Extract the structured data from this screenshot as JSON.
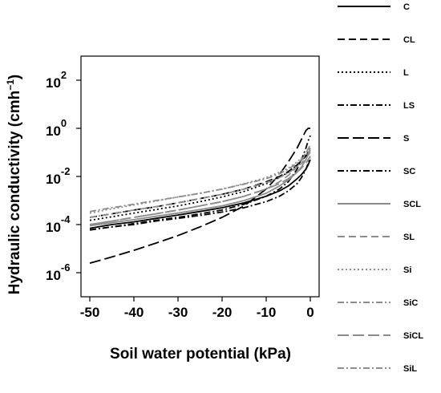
{
  "chart_data": {
    "type": "line",
    "title": "",
    "xlabel": "Soil water potential (kPa)",
    "ylabel": "Hydraulic conductivity (cmh",
    "ylabel_exp": "−1",
    "ylabel_close": ")",
    "y_scale": "log",
    "xlim": [
      -52,
      2
    ],
    "ylim": [
      1e-07,
      1000
    ],
    "x_ticks": [
      -50,
      -40,
      -30,
      -20,
      -10,
      0
    ],
    "x_tick_labels": [
      "-50",
      "-40",
      "-30",
      "-20",
      "-10",
      "0"
    ],
    "y_ticks": [
      {
        "value": 1e-06,
        "base": "10",
        "exp": "-6"
      },
      {
        "value": 0.0001,
        "base": "10",
        "exp": "-4"
      },
      {
        "value": 0.01,
        "base": "10",
        "exp": "-2"
      },
      {
        "value": 1,
        "base": "10",
        "exp": "0"
      },
      {
        "value": 100,
        "base": "10",
        "exp": "2"
      }
    ],
    "grid": false,
    "legend_position": "right",
    "x": [
      -50,
      -45,
      -40,
      -35,
      -30,
      -25,
      -20,
      -15,
      -10,
      -7,
      -5,
      -3,
      -2,
      -1,
      -0.5,
      0
    ],
    "series": [
      {
        "name": "C",
        "color": "#000000",
        "dash": "",
        "values": [
          7e-05,
          0.0001,
          0.00013,
          0.00018,
          0.00025,
          0.00035,
          0.0005,
          0.0008,
          0.0015,
          0.0025,
          0.004,
          0.008,
          0.012,
          0.02,
          0.03,
          0.05
        ]
      },
      {
        "name": "CL",
        "color": "#000000",
        "dash": "9,5",
        "values": [
          0.0002,
          0.00028,
          0.0004,
          0.00055,
          0.0008,
          0.0012,
          0.0018,
          0.003,
          0.006,
          0.01,
          0.016,
          0.03,
          0.045,
          0.07,
          0.09,
          0.12
        ]
      },
      {
        "name": "L",
        "color": "#000000",
        "dash": "2,3",
        "values": [
          0.00015,
          0.00021,
          0.0003,
          0.00042,
          0.0006,
          0.0009,
          0.0014,
          0.0024,
          0.005,
          0.009,
          0.015,
          0.03,
          0.045,
          0.08,
          0.11,
          0.15
        ]
      },
      {
        "name": "LS",
        "color": "#000000",
        "dash": "8,3,2,3",
        "values": [
          6e-05,
          8e-05,
          0.00011,
          0.00015,
          0.0002,
          0.00028,
          0.0004,
          0.0007,
          0.0015,
          0.003,
          0.006,
          0.02,
          0.05,
          0.15,
          0.3,
          0.5
        ]
      },
      {
        "name": "S",
        "color": "#000000",
        "dash": "14,5",
        "values": [
          2.5e-06,
          4.5e-06,
          8.5e-06,
          1.7e-05,
          3.5e-05,
          8e-05,
          0.0002,
          0.0006,
          0.003,
          0.012,
          0.04,
          0.15,
          0.35,
          0.8,
          1.0,
          1.0
        ]
      },
      {
        "name": "SC",
        "color": "#000000",
        "dash": "8,3,2,3",
        "values": [
          6e-05,
          8e-05,
          0.0001,
          0.00014,
          0.00018,
          0.00024,
          0.00033,
          0.0005,
          0.0009,
          0.0015,
          0.0025,
          0.005,
          0.009,
          0.02,
          0.035,
          0.06
        ]
      },
      {
        "name": "SCL",
        "color": "#8c8c8c",
        "dash": "",
        "values": [
          9e-05,
          0.00012,
          0.00016,
          0.00022,
          0.0003,
          0.00042,
          0.0006,
          0.001,
          0.002,
          0.004,
          0.007,
          0.015,
          0.025,
          0.05,
          0.08,
          0.12
        ]
      },
      {
        "name": "SL",
        "color": "#8c8c8c",
        "dash": "9,5",
        "values": [
          0.0001,
          0.00014,
          0.0002,
          0.00028,
          0.0004,
          0.0006,
          0.0009,
          0.0015,
          0.003,
          0.006,
          0.011,
          0.025,
          0.045,
          0.09,
          0.14,
          0.2
        ]
      },
      {
        "name": "Si",
        "color": "#8c8c8c",
        "dash": "2,3",
        "values": [
          0.0003,
          0.00045,
          0.00065,
          0.00095,
          0.0014,
          0.002,
          0.003,
          0.005,
          0.009,
          0.015,
          0.022,
          0.04,
          0.06,
          0.09,
          0.12,
          0.15
        ]
      },
      {
        "name": "SiC",
        "color": "#8c8c8c",
        "dash": "8,3,2,3",
        "values": [
          0.0002,
          0.00028,
          0.0004,
          0.00056,
          0.0008,
          0.0012,
          0.0018,
          0.003,
          0.0055,
          0.009,
          0.014,
          0.025,
          0.035,
          0.055,
          0.075,
          0.1
        ]
      },
      {
        "name": "SiCL",
        "color": "#8c8c8c",
        "dash": "14,5",
        "values": [
          0.0001,
          0.00014,
          0.0002,
          0.00028,
          0.0004,
          0.0006,
          0.0009,
          0.0015,
          0.003,
          0.005,
          0.008,
          0.015,
          0.022,
          0.035,
          0.05,
          0.07
        ]
      },
      {
        "name": "SiL",
        "color": "#8c8c8c",
        "dash": "8,3,2,3",
        "values": [
          0.00035,
          0.0005,
          0.0007,
          0.001,
          0.0014,
          0.002,
          0.003,
          0.0048,
          0.008,
          0.013,
          0.02,
          0.035,
          0.05,
          0.08,
          0.1,
          0.13
        ]
      }
    ]
  }
}
